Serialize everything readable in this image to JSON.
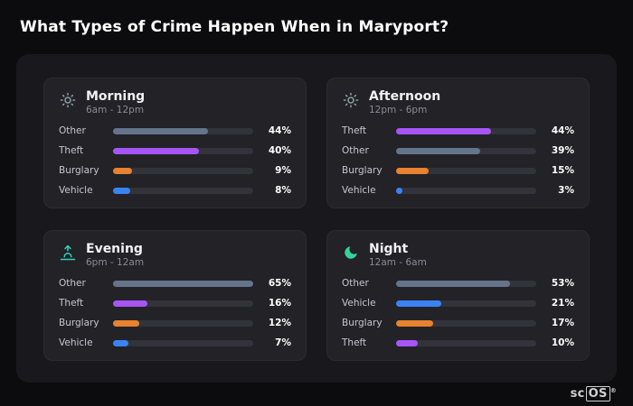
{
  "page": {
    "title": "What Types of Crime Happen When in Maryport?",
    "brand": {
      "prefix": "sc",
      "boxed": "OS",
      "reg": "®"
    }
  },
  "colors": {
    "other": "#64748b",
    "theft": "#a855f7",
    "burglary": "#e8822e",
    "vehicle": "#3b82f6",
    "icon_sun": "#8fa0a8",
    "icon_sunset": "#2dd4bf",
    "icon_moon": "#34d399"
  },
  "chart_data": [
    {
      "type": "bar",
      "title": "Morning",
      "subtitle": "6am - 12pm",
      "icon": "sun-icon",
      "unit": "%",
      "bar_max": 65,
      "categories": [
        "Other",
        "Theft",
        "Burglary",
        "Vehicle"
      ],
      "values": [
        44,
        40,
        9,
        8
      ],
      "display": [
        "44%",
        "40%",
        "9%",
        "8%"
      ]
    },
    {
      "type": "bar",
      "title": "Afternoon",
      "subtitle": "12pm - 6pm",
      "icon": "sun-icon",
      "unit": "%",
      "bar_max": 65,
      "categories": [
        "Theft",
        "Other",
        "Burglary",
        "Vehicle"
      ],
      "values": [
        44,
        39,
        15,
        3
      ],
      "display": [
        "44%",
        "39%",
        "15%",
        "3%"
      ]
    },
    {
      "type": "bar",
      "title": "Evening",
      "subtitle": "6pm - 12am",
      "icon": "sunset-icon",
      "unit": "%",
      "bar_max": 65,
      "categories": [
        "Other",
        "Theft",
        "Burglary",
        "Vehicle"
      ],
      "values": [
        65,
        16,
        12,
        7
      ],
      "display": [
        "65%",
        "16%",
        "12%",
        "7%"
      ]
    },
    {
      "type": "bar",
      "title": "Night",
      "subtitle": "12am - 6am",
      "icon": "moon-icon",
      "unit": "%",
      "bar_max": 65,
      "categories": [
        "Other",
        "Vehicle",
        "Burglary",
        "Theft"
      ],
      "values": [
        53,
        21,
        17,
        10
      ],
      "display": [
        "53%",
        "21%",
        "17%",
        "10%"
      ]
    }
  ]
}
